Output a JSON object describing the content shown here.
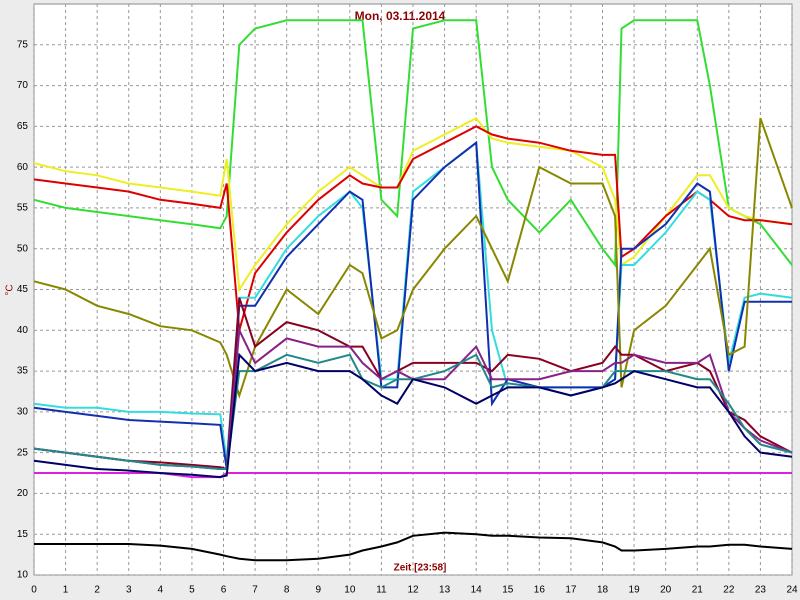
{
  "chart_data": {
    "type": "line",
    "title": "Mon, 03.11.2014",
    "xlabel": "Zeit [23:58]",
    "ylabel": "°C",
    "grid": true,
    "xlim": [
      0,
      24
    ],
    "xticks": [
      0,
      1,
      2,
      3,
      4,
      5,
      6,
      7,
      8,
      9,
      10,
      11,
      12,
      13,
      14,
      15,
      16,
      17,
      18,
      19,
      20,
      21,
      22,
      23,
      24
    ],
    "ylim": [
      10,
      80
    ],
    "yticks": [
      10,
      15,
      20,
      25,
      30,
      35,
      40,
      45,
      50,
      55,
      60,
      65,
      70,
      75
    ],
    "x": [
      0,
      1,
      2,
      3,
      4,
      5,
      5.9,
      6.1,
      6.5,
      7,
      8,
      9,
      10,
      10.4,
      11,
      11.5,
      12,
      13,
      14,
      14.5,
      15,
      16,
      17,
      18,
      18.4,
      18.6,
      19,
      20,
      21,
      21.4,
      22,
      22.5,
      23,
      24
    ],
    "series": [
      {
        "color": "#33dd33",
        "values": [
          56,
          55,
          54.5,
          54,
          53.5,
          53,
          52.5,
          54,
          75,
          77,
          78,
          78,
          78,
          78,
          56,
          54,
          77,
          78,
          78,
          60,
          56,
          52,
          56,
          50,
          48,
          77,
          78,
          78,
          78,
          70,
          55,
          54,
          53,
          48
        ]
      },
      {
        "color": "#eeee22",
        "values": [
          60.5,
          59.5,
          59,
          58,
          57.5,
          57,
          56.5,
          61,
          45,
          48,
          53,
          57,
          60,
          59,
          57.5,
          57.5,
          62,
          64,
          66,
          63.5,
          63,
          62.5,
          62,
          60,
          56,
          48,
          49,
          54,
          59,
          59,
          55,
          54,
          53.5,
          53
        ]
      },
      {
        "color": "#dd0000",
        "values": [
          58.5,
          58,
          57.5,
          57,
          56,
          55.5,
          55,
          58,
          40,
          47,
          52,
          56,
          59,
          58,
          57.5,
          57.5,
          61,
          63,
          65,
          64,
          63.5,
          63,
          62,
          61.5,
          61.5,
          49,
          50,
          54,
          57,
          56,
          54,
          53.5,
          53.5,
          53
        ]
      },
      {
        "color": "#33dddd",
        "values": [
          31,
          30.5,
          30.5,
          30,
          30,
          29.8,
          29.7,
          24,
          44,
          44,
          50,
          54,
          57,
          55,
          34,
          34,
          57,
          60,
          63,
          40,
          33,
          33,
          33,
          33,
          34,
          48,
          48,
          52,
          57,
          56,
          36,
          44,
          44.5,
          44
        ]
      },
      {
        "color": "#1030b0",
        "values": [
          30.5,
          30,
          29.5,
          29,
          28.8,
          28.6,
          28.4,
          23,
          43,
          43,
          49,
          53,
          57,
          56,
          33,
          33,
          56,
          60,
          63,
          31,
          34,
          33,
          33,
          33,
          34,
          50,
          50,
          53,
          58,
          57,
          35,
          43.5,
          43.5,
          43.5
        ]
      },
      {
        "color": "#888800",
        "values": [
          46,
          45,
          43,
          42,
          40.5,
          40,
          38.5,
          37,
          32,
          38,
          45,
          42,
          48,
          47,
          39,
          40,
          45,
          50,
          54,
          50,
          46,
          60,
          58,
          58,
          54,
          33,
          40,
          43,
          48,
          50,
          37,
          38,
          66,
          55
        ]
      },
      {
        "color": "#dd22dd",
        "values": [
          22.5,
          22.5,
          22.5,
          22.5,
          22.5,
          22,
          22,
          22.5,
          22.5,
          22.5,
          22.5,
          22.5,
          22.5,
          22.5,
          22.5,
          22.5,
          22.5,
          22.5,
          22.5,
          22.5,
          22.5,
          22.5,
          22.5,
          22.5,
          22.5,
          22.5,
          22.5,
          22.5,
          22.5,
          22.5,
          22.5,
          22.5,
          22.5,
          22.5
        ]
      },
      {
        "color": "#000000",
        "values": [
          13.8,
          13.8,
          13.8,
          13.8,
          13.6,
          13.2,
          12.5,
          12.3,
          12,
          11.8,
          11.8,
          12,
          12.5,
          13,
          13.5,
          14,
          14.8,
          15.2,
          15,
          14.8,
          14.8,
          14.6,
          14.5,
          14,
          13.5,
          13,
          13,
          13.2,
          13.5,
          13.5,
          13.7,
          13.7,
          13.5,
          13.2
        ]
      },
      {
        "color": "#880022",
        "values": [
          25.5,
          25,
          24.5,
          24,
          23.8,
          23.5,
          23.2,
          23,
          44,
          38,
          41,
          40,
          38,
          38,
          34,
          35,
          36,
          36,
          36,
          35,
          37,
          36.5,
          35,
          36,
          38,
          37,
          37,
          35,
          36,
          35,
          30,
          29,
          27,
          25
        ]
      },
      {
        "color": "#882288",
        "values": [
          25.5,
          25,
          24.5,
          24,
          23.5,
          23.3,
          23,
          23,
          40,
          36,
          39,
          38,
          38,
          36,
          34,
          35,
          34,
          34,
          38,
          34,
          34,
          34,
          35,
          35,
          36,
          36,
          37,
          36,
          36,
          37,
          30,
          28,
          26.5,
          25
        ]
      },
      {
        "color": "#228888",
        "values": [
          25.5,
          25,
          24.5,
          24,
          23.5,
          23.3,
          23,
          23,
          35,
          35,
          37,
          36,
          37,
          34,
          33,
          34,
          34,
          35,
          37,
          33,
          33.5,
          33,
          32,
          33,
          35,
          35,
          35,
          35,
          34,
          34,
          31,
          28,
          26,
          25
        ]
      },
      {
        "color": "#000066",
        "values": [
          24,
          23.5,
          23,
          22.8,
          22.5,
          22.3,
          22,
          22.2,
          37,
          35,
          36,
          35,
          35,
          34,
          32,
          31,
          34,
          33,
          31,
          32,
          33,
          33,
          32,
          33,
          33.5,
          34,
          35,
          34,
          33,
          33,
          30,
          27,
          25,
          24.5
        ]
      }
    ]
  }
}
